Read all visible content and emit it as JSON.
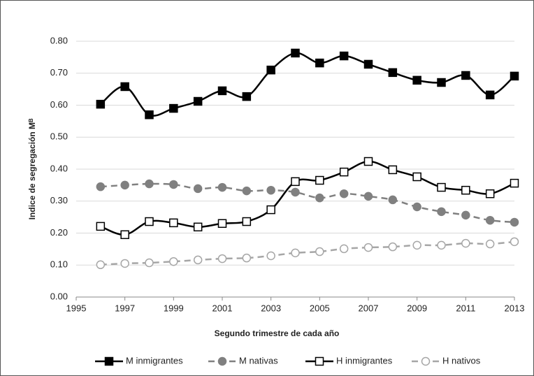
{
  "chart_data": {
    "type": "line",
    "y_label": "Indice de segregación Mᴮ",
    "x_label": "Segundo trimestre de cada año",
    "x": [
      1996,
      1997,
      1998,
      1999,
      2000,
      2001,
      2002,
      2003,
      2004,
      2005,
      2006,
      2007,
      2008,
      2009,
      2010,
      2011,
      2012,
      2013
    ],
    "xlim": [
      1995,
      2013
    ],
    "xticks": [
      1995,
      1997,
      1999,
      2001,
      2003,
      2005,
      2007,
      2009,
      2011,
      2013
    ],
    "ylim": [
      0,
      0.8
    ],
    "yticks": [
      {
        "value": 0,
        "label": "0.00"
      },
      {
        "value": 0.1,
        "label": "0.10"
      },
      {
        "value": 0.2,
        "label": "0.20"
      },
      {
        "value": 0.3,
        "label": "0.30"
      },
      {
        "value": 0.4,
        "label": "0.40"
      },
      {
        "value": 0.5,
        "label": "0.50"
      },
      {
        "value": 0.6,
        "label": "0.60"
      },
      {
        "value": 0.7,
        "label": "0.70"
      },
      {
        "value": 0.8,
        "label": "0.80"
      }
    ],
    "grid": true,
    "legend": "bottom",
    "series": [
      {
        "name": "M inmigrantes",
        "color": "#000000",
        "line_style": "solid",
        "marker": "square",
        "marker_filled": true,
        "values": [
          0.603,
          0.658,
          0.57,
          0.59,
          0.612,
          0.645,
          0.627,
          0.71,
          0.763,
          0.732,
          0.754,
          0.728,
          0.702,
          0.678,
          0.671,
          0.693,
          0.632,
          0.691
        ]
      },
      {
        "name": "M nativas",
        "color": "#808080",
        "line_style": "dashed",
        "marker": "circle",
        "marker_filled": true,
        "values": [
          0.345,
          0.35,
          0.354,
          0.352,
          0.339,
          0.343,
          0.332,
          0.334,
          0.328,
          0.31,
          0.323,
          0.315,
          0.304,
          0.282,
          0.267,
          0.256,
          0.24,
          0.234
        ]
      },
      {
        "name": "H inmigrantes",
        "color": "#000000",
        "line_style": "solid",
        "marker": "square",
        "marker_filled": false,
        "values": [
          0.221,
          0.195,
          0.236,
          0.232,
          0.219,
          0.23,
          0.236,
          0.273,
          0.361,
          0.365,
          0.391,
          0.424,
          0.398,
          0.376,
          0.343,
          0.334,
          0.323,
          0.356
        ]
      },
      {
        "name": "H nativos",
        "color": "#a6a6a6",
        "line_style": "dashed",
        "marker": "circle",
        "marker_filled": false,
        "values": [
          0.101,
          0.105,
          0.107,
          0.111,
          0.116,
          0.12,
          0.122,
          0.129,
          0.138,
          0.142,
          0.151,
          0.155,
          0.157,
          0.162,
          0.162,
          0.168,
          0.166,
          0.173
        ]
      }
    ]
  }
}
